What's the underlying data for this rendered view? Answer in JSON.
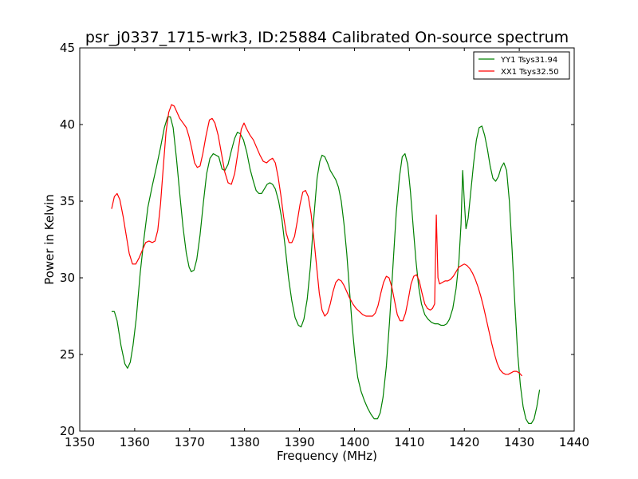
{
  "chart_data": {
    "type": "line",
    "title": "psr_j0337_1715-wrk3, ID:25884 Calibrated On-source spectrum",
    "xlabel": "Frequency (MHz)",
    "ylabel": "Power in Kelvin",
    "xlim": [
      1350,
      1440
    ],
    "ylim": [
      20,
      45
    ],
    "xticks": [
      1350,
      1360,
      1370,
      1380,
      1390,
      1400,
      1410,
      1420,
      1430,
      1440
    ],
    "yticks": [
      20,
      25,
      30,
      35,
      40,
      45
    ],
    "grid": false,
    "legend_position": "top-right",
    "series": [
      {
        "name": "YY1 Tsys31.94",
        "color": "#008000",
        "points": [
          [
            1355.8,
            27.8
          ],
          [
            1356.3,
            27.8
          ],
          [
            1356.8,
            27.2
          ],
          [
            1357.5,
            25.6
          ],
          [
            1358.2,
            24.4
          ],
          [
            1358.7,
            24.1
          ],
          [
            1359.2,
            24.5
          ],
          [
            1359.7,
            25.6
          ],
          [
            1360.3,
            27.4
          ],
          [
            1361.0,
            30.3
          ],
          [
            1361.7,
            32.6
          ],
          [
            1362.4,
            34.6
          ],
          [
            1363.2,
            36.0
          ],
          [
            1364.0,
            37.3
          ],
          [
            1364.7,
            38.5
          ],
          [
            1365.4,
            39.8
          ],
          [
            1366.0,
            40.5
          ],
          [
            1366.5,
            40.5
          ],
          [
            1367.0,
            39.8
          ],
          [
            1367.6,
            37.8
          ],
          [
            1368.2,
            35.5
          ],
          [
            1368.8,
            33.3
          ],
          [
            1369.4,
            31.6
          ],
          [
            1369.9,
            30.7
          ],
          [
            1370.3,
            30.4
          ],
          [
            1370.8,
            30.5
          ],
          [
            1371.3,
            31.2
          ],
          [
            1371.9,
            32.8
          ],
          [
            1372.5,
            34.9
          ],
          [
            1373.1,
            36.8
          ],
          [
            1373.7,
            37.8
          ],
          [
            1374.3,
            38.1
          ],
          [
            1374.8,
            38.0
          ],
          [
            1375.3,
            37.9
          ],
          [
            1375.9,
            37.1
          ],
          [
            1376.4,
            37.0
          ],
          [
            1377.0,
            37.4
          ],
          [
            1377.6,
            38.3
          ],
          [
            1378.2,
            39.1
          ],
          [
            1378.7,
            39.5
          ],
          [
            1379.2,
            39.4
          ],
          [
            1379.8,
            39.0
          ],
          [
            1380.4,
            38.2
          ],
          [
            1381.0,
            37.1
          ],
          [
            1381.6,
            36.3
          ],
          [
            1382.1,
            35.7
          ],
          [
            1382.6,
            35.5
          ],
          [
            1383.1,
            35.5
          ],
          [
            1383.6,
            35.8
          ],
          [
            1384.1,
            36.1
          ],
          [
            1384.6,
            36.2
          ],
          [
            1385.1,
            36.1
          ],
          [
            1385.6,
            35.8
          ],
          [
            1386.2,
            35.0
          ],
          [
            1386.8,
            33.8
          ],
          [
            1387.4,
            32.0
          ],
          [
            1388.0,
            30.0
          ],
          [
            1388.6,
            28.5
          ],
          [
            1389.2,
            27.4
          ],
          [
            1389.8,
            26.9
          ],
          [
            1390.3,
            26.8
          ],
          [
            1390.8,
            27.3
          ],
          [
            1391.4,
            28.6
          ],
          [
            1392.0,
            30.8
          ],
          [
            1392.6,
            33.9
          ],
          [
            1393.2,
            36.5
          ],
          [
            1393.7,
            37.6
          ],
          [
            1394.1,
            38.0
          ],
          [
            1394.6,
            37.9
          ],
          [
            1395.1,
            37.5
          ],
          [
            1395.6,
            37.0
          ],
          [
            1396.1,
            36.7
          ],
          [
            1396.6,
            36.4
          ],
          [
            1397.1,
            35.9
          ],
          [
            1397.6,
            35.0
          ],
          [
            1398.1,
            33.5
          ],
          [
            1398.6,
            31.6
          ],
          [
            1399.1,
            29.2
          ],
          [
            1399.6,
            26.8
          ],
          [
            1400.1,
            24.9
          ],
          [
            1400.6,
            23.5
          ],
          [
            1401.2,
            22.6
          ],
          [
            1401.8,
            22.0
          ],
          [
            1402.4,
            21.5
          ],
          [
            1403.0,
            21.1
          ],
          [
            1403.6,
            20.8
          ],
          [
            1404.2,
            20.8
          ],
          [
            1404.7,
            21.2
          ],
          [
            1405.2,
            22.2
          ],
          [
            1405.8,
            24.2
          ],
          [
            1406.4,
            27.2
          ],
          [
            1407.0,
            30.7
          ],
          [
            1407.6,
            34.2
          ],
          [
            1408.2,
            36.6
          ],
          [
            1408.7,
            37.9
          ],
          [
            1409.2,
            38.1
          ],
          [
            1409.7,
            37.4
          ],
          [
            1410.2,
            35.6
          ],
          [
            1410.7,
            33.3
          ],
          [
            1411.2,
            31.1
          ],
          [
            1411.7,
            29.4
          ],
          [
            1412.2,
            28.3
          ],
          [
            1412.8,
            27.6
          ],
          [
            1413.4,
            27.3
          ],
          [
            1414.0,
            27.1
          ],
          [
            1414.6,
            27.0
          ],
          [
            1415.2,
            27.0
          ],
          [
            1415.8,
            26.9
          ],
          [
            1416.3,
            26.9
          ],
          [
            1416.8,
            27.0
          ],
          [
            1417.3,
            27.3
          ],
          [
            1417.9,
            28.0
          ],
          [
            1418.5,
            29.3
          ],
          [
            1419.0,
            31.0
          ],
          [
            1419.4,
            33.5
          ],
          [
            1419.7,
            37.0
          ],
          [
            1420.0,
            35.0
          ],
          [
            1420.3,
            33.2
          ],
          [
            1420.7,
            33.9
          ],
          [
            1421.2,
            35.7
          ],
          [
            1421.7,
            37.5
          ],
          [
            1422.2,
            39.0
          ],
          [
            1422.7,
            39.8
          ],
          [
            1423.2,
            39.9
          ],
          [
            1423.7,
            39.3
          ],
          [
            1424.2,
            38.4
          ],
          [
            1424.7,
            37.3
          ],
          [
            1425.2,
            36.5
          ],
          [
            1425.7,
            36.3
          ],
          [
            1426.2,
            36.6
          ],
          [
            1426.7,
            37.2
          ],
          [
            1427.2,
            37.5
          ],
          [
            1427.7,
            37.0
          ],
          [
            1428.2,
            35.0
          ],
          [
            1428.7,
            31.8
          ],
          [
            1429.2,
            28.3
          ],
          [
            1429.7,
            25.1
          ],
          [
            1430.2,
            23.0
          ],
          [
            1430.7,
            21.6
          ],
          [
            1431.2,
            20.8
          ],
          [
            1431.7,
            20.5
          ],
          [
            1432.2,
            20.5
          ],
          [
            1432.7,
            20.8
          ],
          [
            1433.2,
            21.6
          ],
          [
            1433.7,
            22.7
          ]
        ]
      },
      {
        "name": "XX1 Tsys32.50",
        "color": "#ff0000",
        "points": [
          [
            1355.8,
            34.5
          ],
          [
            1356.3,
            35.3
          ],
          [
            1356.8,
            35.5
          ],
          [
            1357.3,
            35.1
          ],
          [
            1357.9,
            34.0
          ],
          [
            1358.4,
            32.9
          ],
          [
            1359.0,
            31.6
          ],
          [
            1359.6,
            30.9
          ],
          [
            1360.2,
            30.9
          ],
          [
            1360.8,
            31.3
          ],
          [
            1361.4,
            31.8
          ],
          [
            1362.0,
            32.3
          ],
          [
            1362.6,
            32.4
          ],
          [
            1363.2,
            32.3
          ],
          [
            1363.7,
            32.4
          ],
          [
            1364.2,
            33.1
          ],
          [
            1364.7,
            34.8
          ],
          [
            1365.2,
            37.2
          ],
          [
            1365.7,
            39.5
          ],
          [
            1366.2,
            40.8
          ],
          [
            1366.7,
            41.3
          ],
          [
            1367.2,
            41.2
          ],
          [
            1367.7,
            40.8
          ],
          [
            1368.2,
            40.4
          ],
          [
            1368.8,
            40.1
          ],
          [
            1369.4,
            39.8
          ],
          [
            1369.9,
            39.2
          ],
          [
            1370.4,
            38.4
          ],
          [
            1370.9,
            37.5
          ],
          [
            1371.4,
            37.2
          ],
          [
            1371.9,
            37.3
          ],
          [
            1372.4,
            38.1
          ],
          [
            1373.0,
            39.3
          ],
          [
            1373.6,
            40.3
          ],
          [
            1374.1,
            40.4
          ],
          [
            1374.6,
            40.1
          ],
          [
            1375.2,
            39.3
          ],
          [
            1375.8,
            38.1
          ],
          [
            1376.4,
            36.9
          ],
          [
            1377.0,
            36.2
          ],
          [
            1377.6,
            36.1
          ],
          [
            1378.2,
            36.8
          ],
          [
            1378.8,
            38.2
          ],
          [
            1379.4,
            39.7
          ],
          [
            1379.9,
            40.1
          ],
          [
            1380.4,
            39.7
          ],
          [
            1381.0,
            39.3
          ],
          [
            1381.6,
            39.0
          ],
          [
            1382.2,
            38.5
          ],
          [
            1382.8,
            38.0
          ],
          [
            1383.4,
            37.6
          ],
          [
            1384.0,
            37.5
          ],
          [
            1384.6,
            37.7
          ],
          [
            1385.1,
            37.8
          ],
          [
            1385.6,
            37.5
          ],
          [
            1386.1,
            36.6
          ],
          [
            1386.6,
            35.4
          ],
          [
            1387.1,
            34.0
          ],
          [
            1387.6,
            32.9
          ],
          [
            1388.1,
            32.3
          ],
          [
            1388.6,
            32.3
          ],
          [
            1389.1,
            32.7
          ],
          [
            1389.6,
            33.7
          ],
          [
            1390.1,
            34.8
          ],
          [
            1390.6,
            35.6
          ],
          [
            1391.1,
            35.7
          ],
          [
            1391.6,
            35.3
          ],
          [
            1392.1,
            34.2
          ],
          [
            1392.6,
            32.6
          ],
          [
            1393.1,
            30.8
          ],
          [
            1393.6,
            29.0
          ],
          [
            1394.1,
            27.9
          ],
          [
            1394.6,
            27.5
          ],
          [
            1395.1,
            27.7
          ],
          [
            1395.6,
            28.3
          ],
          [
            1396.1,
            29.1
          ],
          [
            1396.6,
            29.7
          ],
          [
            1397.1,
            29.9
          ],
          [
            1397.6,
            29.8
          ],
          [
            1398.1,
            29.5
          ],
          [
            1398.6,
            29.1
          ],
          [
            1399.1,
            28.7
          ],
          [
            1399.7,
            28.3
          ],
          [
            1400.3,
            28.0
          ],
          [
            1400.9,
            27.8
          ],
          [
            1401.5,
            27.6
          ],
          [
            1402.1,
            27.5
          ],
          [
            1402.7,
            27.5
          ],
          [
            1403.3,
            27.5
          ],
          [
            1403.8,
            27.7
          ],
          [
            1404.3,
            28.2
          ],
          [
            1404.8,
            29.0
          ],
          [
            1405.3,
            29.7
          ],
          [
            1405.8,
            30.1
          ],
          [
            1406.3,
            30.0
          ],
          [
            1406.8,
            29.4
          ],
          [
            1407.3,
            28.5
          ],
          [
            1407.8,
            27.6
          ],
          [
            1408.3,
            27.2
          ],
          [
            1408.8,
            27.2
          ],
          [
            1409.3,
            27.7
          ],
          [
            1409.8,
            28.6
          ],
          [
            1410.3,
            29.6
          ],
          [
            1410.8,
            30.1
          ],
          [
            1411.3,
            30.2
          ],
          [
            1411.8,
            29.8
          ],
          [
            1412.3,
            29.0
          ],
          [
            1412.8,
            28.3
          ],
          [
            1413.3,
            28.0
          ],
          [
            1413.8,
            27.9
          ],
          [
            1414.2,
            28.0
          ],
          [
            1414.6,
            28.3
          ],
          [
            1414.9,
            34.1
          ],
          [
            1415.2,
            30.0
          ],
          [
            1415.5,
            29.6
          ],
          [
            1416.0,
            29.7
          ],
          [
            1416.5,
            29.8
          ],
          [
            1417.0,
            29.8
          ],
          [
            1417.5,
            29.9
          ],
          [
            1418.0,
            30.1
          ],
          [
            1418.5,
            30.4
          ],
          [
            1419.0,
            30.7
          ],
          [
            1419.5,
            30.8
          ],
          [
            1420.0,
            30.9
          ],
          [
            1420.5,
            30.8
          ],
          [
            1421.0,
            30.6
          ],
          [
            1421.5,
            30.3
          ],
          [
            1422.0,
            29.9
          ],
          [
            1422.5,
            29.4
          ],
          [
            1423.0,
            28.8
          ],
          [
            1423.5,
            28.1
          ],
          [
            1424.0,
            27.3
          ],
          [
            1424.5,
            26.5
          ],
          [
            1425.0,
            25.7
          ],
          [
            1425.5,
            25.0
          ],
          [
            1426.0,
            24.4
          ],
          [
            1426.5,
            24.0
          ],
          [
            1427.0,
            23.8
          ],
          [
            1427.5,
            23.7
          ],
          [
            1428.0,
            23.7
          ],
          [
            1428.5,
            23.8
          ],
          [
            1429.0,
            23.9
          ],
          [
            1429.5,
            23.9
          ],
          [
            1430.0,
            23.8
          ],
          [
            1430.5,
            23.6
          ]
        ]
      }
    ]
  }
}
